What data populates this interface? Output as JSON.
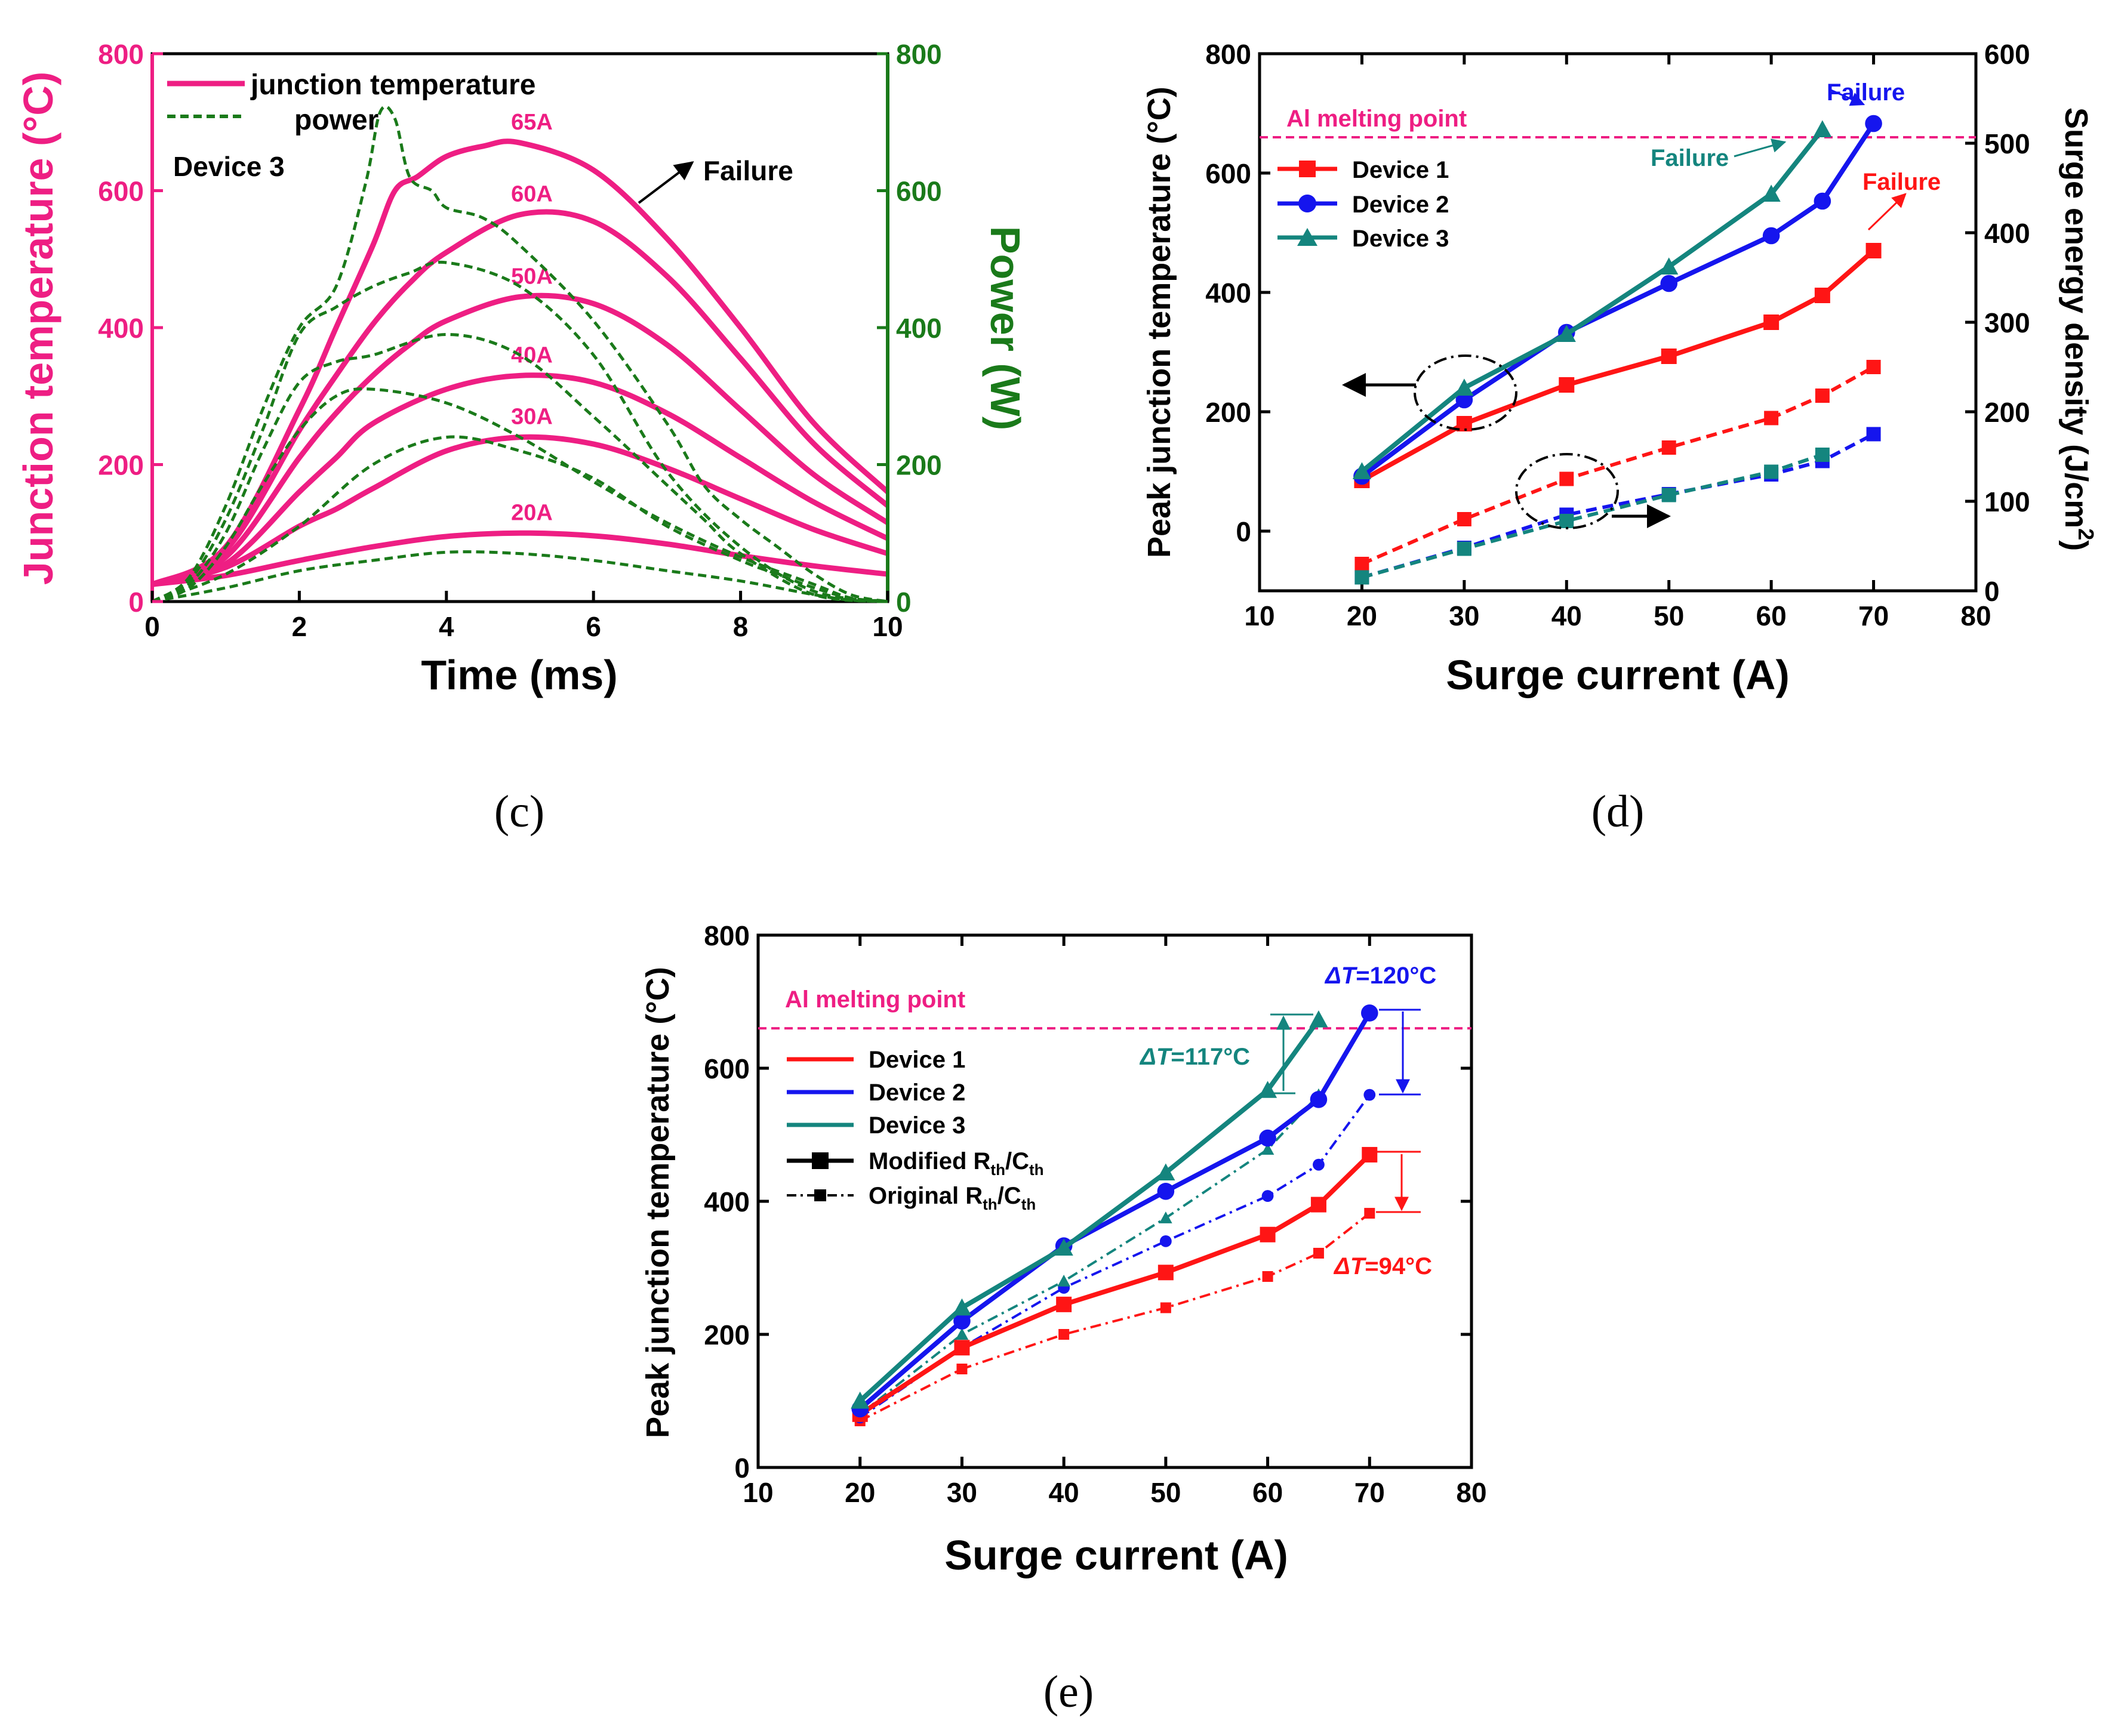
{
  "panels": {
    "c": {
      "caption": "(c)",
      "xlabel": "Time (ms)",
      "ylabel_left": "Junction temperature (°C)",
      "ylabel_right": "Power (W)",
      "device_label": "Device 3",
      "failure_label": "Failure",
      "legend": [
        "junction temperature",
        "power"
      ]
    },
    "d": {
      "caption": "(d)",
      "xlabel": "Surge current (A)",
      "ylabel_left": "Peak junction temperature (°C)",
      "ylabel_right": "Surge energy density (J/cm",
      "ylabel_right_sup": "2",
      "ylabel_right_close": ")",
      "melting_label": "Al melting point",
      "failure_label": "Failure",
      "legend": [
        "Device 1",
        "Device 2",
        "Device 3"
      ]
    },
    "e": {
      "caption": "(e)",
      "xlabel": "Surge current (A)",
      "ylabel": "Peak junction temperature (°C)",
      "melting_label": "Al melting point",
      "legend": [
        "Device 1",
        "Device 2",
        "Device 3"
      ],
      "legend_modified": "Modified R",
      "legend_original": "Original R",
      "sub_th": "th",
      "legend_cth": "/C",
      "dt_prefix": "ΔT",
      "dt_device2": "=120°C",
      "dt_device3": "=117°C",
      "dt_device1": "=94°C"
    }
  },
  "colors": {
    "pink": "#ee1e83",
    "green": "#1a7a1a",
    "red": "#ff1515",
    "blue": "#1515ee",
    "teal": "#14857e"
  },
  "chart_data": [
    {
      "id": "c",
      "type": "line",
      "title": "",
      "xlabel": "Time (ms)",
      "ylabel": "Junction temperature (°C)",
      "y2label": "Power (W)",
      "xlim": [
        0,
        10
      ],
      "ylim": [
        0,
        800
      ],
      "y2lim": [
        0,
        800
      ],
      "xticks": [
        0,
        2,
        4,
        6,
        8,
        10
      ],
      "yticks": [
        0,
        200,
        400,
        600,
        800
      ],
      "y2ticks": [
        0,
        200,
        400,
        600,
        800
      ],
      "legend": "top-left",
      "series": [
        {
          "name": "20A",
          "axis": "left",
          "style": "solid",
          "x": [
            0,
            1,
            2,
            3,
            4,
            5,
            6,
            7,
            8,
            9,
            10
          ],
          "y": [
            25,
            38,
            60,
            80,
            95,
            100,
            96,
            84,
            67,
            52,
            40
          ]
        },
        {
          "name": "30A",
          "axis": "left",
          "style": "solid",
          "x": [
            0,
            1,
            2,
            2.5,
            3,
            4,
            5,
            6,
            7,
            8,
            9,
            10
          ],
          "y": [
            25,
            50,
            110,
            135,
            165,
            220,
            240,
            230,
            195,
            150,
            105,
            70
          ]
        },
        {
          "name": "40A",
          "axis": "left",
          "style": "solid",
          "x": [
            0,
            1,
            2,
            2.5,
            3,
            4,
            5,
            6,
            7,
            8,
            9,
            10
          ],
          "y": [
            25,
            55,
            160,
            210,
            260,
            310,
            330,
            320,
            275,
            210,
            145,
            92
          ]
        },
        {
          "name": "50A",
          "axis": "left",
          "style": "solid",
          "x": [
            0,
            1,
            2,
            2.5,
            3,
            3.5,
            4,
            5,
            6,
            7,
            8,
            9,
            10
          ],
          "y": [
            25,
            65,
            210,
            275,
            330,
            375,
            410,
            445,
            435,
            375,
            280,
            185,
            115
          ]
        },
        {
          "name": "60A",
          "axis": "left",
          "style": "solid",
          "x": [
            0,
            1,
            2,
            2.5,
            3,
            3.5,
            4,
            5,
            6,
            7,
            8,
            9,
            10
          ],
          "y": [
            25,
            75,
            250,
            330,
            405,
            465,
            510,
            565,
            555,
            475,
            355,
            230,
            140
          ]
        },
        {
          "name": "65A",
          "axis": "left",
          "style": "solid",
          "x": [
            0,
            1,
            2,
            2.5,
            3,
            3.3,
            3.6,
            4,
            4.5,
            5,
            6,
            7,
            8,
            9,
            10
          ],
          "y": [
            25,
            80,
            280,
            400,
            520,
            600,
            620,
            650,
            665,
            670,
            630,
            530,
            400,
            260,
            160
          ]
        },
        {
          "name": "P20A",
          "axis": "right",
          "style": "dashed",
          "x": [
            0,
            1,
            2,
            3,
            4,
            5,
            6,
            7,
            8,
            9,
            9.5,
            10
          ],
          "y": [
            0,
            20,
            45,
            60,
            72,
            70,
            60,
            45,
            30,
            10,
            2,
            0
          ]
        },
        {
          "name": "P30A",
          "axis": "right",
          "style": "dashed",
          "x": [
            0,
            1,
            2,
            3,
            4,
            5,
            6,
            7,
            8,
            8.5,
            9,
            9.5,
            10
          ],
          "y": [
            0,
            40,
            110,
            200,
            240,
            220,
            180,
            110,
            60,
            40,
            20,
            5,
            0
          ]
        },
        {
          "name": "P40A",
          "axis": "right",
          "style": "dashed",
          "x": [
            0,
            0.5,
            1,
            1.5,
            2,
            2.5,
            3,
            4,
            5,
            6,
            7,
            8,
            9,
            9.5,
            10
          ],
          "y": [
            0,
            20,
            80,
            170,
            250,
            300,
            310,
            290,
            240,
            175,
            115,
            65,
            25,
            5,
            0
          ]
        },
        {
          "name": "P50A",
          "axis": "right",
          "style": "dashed",
          "x": [
            0,
            0.5,
            1,
            1.5,
            2,
            2.5,
            3,
            4,
            5,
            6,
            7,
            7.5,
            8,
            9,
            10
          ],
          "y": [
            0,
            25,
            100,
            220,
            320,
            350,
            360,
            390,
            360,
            270,
            170,
            120,
            70,
            10,
            0
          ]
        },
        {
          "name": "P60A",
          "axis": "right",
          "style": "dashed",
          "x": [
            0,
            0.5,
            1,
            1.5,
            2,
            2.5,
            3,
            3.5,
            4,
            5,
            6,
            7,
            8,
            9,
            10
          ],
          "y": [
            0,
            30,
            120,
            250,
            390,
            430,
            460,
            480,
            495,
            460,
            360,
            190,
            80,
            15,
            0
          ]
        },
        {
          "name": "P65A",
          "axis": "right",
          "style": "dashed",
          "x": [
            0,
            0.5,
            1,
            1.5,
            2,
            2.5,
            2.9,
            3.1,
            3.3,
            3.5,
            3.8,
            4,
            4.5,
            5,
            6,
            7,
            7.5,
            8,
            8.5,
            9,
            9.5,
            10
          ],
          "y": [
            0,
            35,
            140,
            280,
            400,
            460,
            610,
            715,
            705,
            620,
            600,
            575,
            560,
            520,
            410,
            260,
            170,
            120,
            80,
            40,
            10,
            0
          ]
        }
      ]
    },
    {
      "id": "d",
      "type": "line",
      "title": "",
      "xlabel": "Surge current (A)",
      "ylabel": "Peak junction temperature (°C)",
      "y2label": "Surge energy density (J/cm2)",
      "xlim": [
        10,
        80
      ],
      "ylim": [
        -100,
        800
      ],
      "y2lim": [
        0,
        600
      ],
      "xticks": [
        10,
        20,
        30,
        40,
        50,
        60,
        70,
        80
      ],
      "yticks": [
        0,
        200,
        400,
        600,
        800
      ],
      "y2ticks": [
        0,
        100,
        200,
        300,
        400,
        500,
        600
      ],
      "reference_line": 660,
      "legend": "top-left",
      "series": [
        {
          "name": "Device 1",
          "axis": "left",
          "marker": "square",
          "x": [
            20,
            30,
            40,
            50,
            60,
            65,
            70
          ],
          "y": [
            85,
            180,
            245,
            293,
            350,
            395,
            470
          ]
        },
        {
          "name": "Device 2",
          "axis": "left",
          "marker": "circle",
          "x": [
            20,
            30,
            40,
            50,
            60,
            65,
            70
          ],
          "y": [
            92,
            220,
            333,
            415,
            495,
            553,
            683
          ]
        },
        {
          "name": "Device 3",
          "axis": "left",
          "marker": "triangle",
          "x": [
            20,
            30,
            40,
            50,
            60,
            65
          ],
          "y": [
            100,
            240,
            330,
            443,
            565,
            673
          ]
        },
        {
          "name": "Device 1 energy",
          "axis": "right",
          "marker": "square",
          "style": "dashed",
          "x": [
            20,
            30,
            40,
            50,
            60,
            65,
            70
          ],
          "y": [
            30,
            80,
            125,
            160,
            193,
            218,
            250
          ]
        },
        {
          "name": "Device 2 energy",
          "axis": "right",
          "marker": "square",
          "style": "dashed",
          "x": [
            20,
            30,
            40,
            50,
            60,
            65,
            70
          ],
          "y": [
            15,
            48,
            85,
            108,
            130,
            145,
            175
          ]
        },
        {
          "name": "Device 3 energy",
          "axis": "right",
          "marker": "square",
          "style": "dashed",
          "x": [
            20,
            30,
            40,
            50,
            60,
            65
          ],
          "y": [
            15,
            47,
            78,
            107,
            133,
            152
          ]
        }
      ]
    },
    {
      "id": "e",
      "type": "line",
      "title": "",
      "xlabel": "Surge current (A)",
      "ylabel": "Peak junction temperature (°C)",
      "xlim": [
        10,
        80
      ],
      "ylim": [
        0,
        800
      ],
      "xticks": [
        10,
        20,
        30,
        40,
        50,
        60,
        70,
        80
      ],
      "yticks": [
        0,
        200,
        400,
        600,
        800
      ],
      "reference_line": 660,
      "legend": "left",
      "series": [
        {
          "name": "Device 1",
          "style": "solid",
          "marker": "square",
          "x": [
            20,
            30,
            40,
            50,
            60,
            65,
            70
          ],
          "y": [
            80,
            180,
            245,
            293,
            350,
            395,
            470
          ]
        },
        {
          "name": "Device 2",
          "style": "solid",
          "marker": "circle",
          "x": [
            20,
            30,
            40,
            50,
            60,
            65,
            70
          ],
          "y": [
            88,
            220,
            333,
            415,
            495,
            553,
            683
          ]
        },
        {
          "name": "Device 3",
          "style": "solid",
          "marker": "triangle",
          "x": [
            20,
            30,
            40,
            50,
            60,
            65
          ],
          "y": [
            100,
            240,
            330,
            443,
            567,
            673
          ]
        },
        {
          "name": "Device 1 original",
          "style": "dashdot",
          "marker": "square",
          "x": [
            20,
            30,
            40,
            50,
            60,
            65,
            70
          ],
          "y": [
            70,
            148,
            200,
            240,
            287,
            322,
            382
          ]
        },
        {
          "name": "Device 2 original",
          "style": "dashdot",
          "marker": "circle",
          "x": [
            20,
            30,
            40,
            50,
            60,
            65,
            70
          ],
          "y": [
            75,
            180,
            270,
            340,
            408,
            455,
            560
          ]
        },
        {
          "name": "Device 3 original",
          "style": "dashdot",
          "marker": "triangle",
          "x": [
            20,
            30,
            40,
            50,
            60,
            65
          ],
          "y": [
            80,
            200,
            280,
            375,
            478,
            560
          ]
        }
      ]
    }
  ]
}
